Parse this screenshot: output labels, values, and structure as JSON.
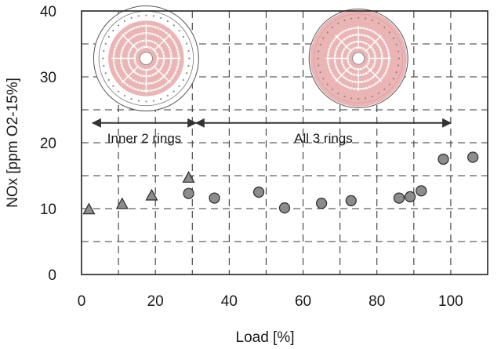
{
  "chart_data": {
    "type": "scatter",
    "xlabel": "Load [%]",
    "ylabel": "NOx [ppm O2-15%]",
    "xlim": [
      0,
      110
    ],
    "ylim": [
      0,
      40
    ],
    "xticks": [
      0,
      20,
      40,
      60,
      80,
      100
    ],
    "yticks": [
      0,
      10,
      20,
      30,
      40
    ],
    "grid": "dashed",
    "series": [
      {
        "marker": "triangle",
        "color": "#8c8c8c",
        "points": [
          {
            "x": 2,
            "y": 9.8
          },
          {
            "x": 11,
            "y": 10.6
          },
          {
            "x": 19,
            "y": 11.9
          },
          {
            "x": 29,
            "y": 14.6
          }
        ]
      },
      {
        "marker": "circle",
        "color": "#8c8c8c",
        "points": [
          {
            "x": 29,
            "y": 12.3
          },
          {
            "x": 36,
            "y": 11.6
          },
          {
            "x": 48,
            "y": 12.5
          },
          {
            "x": 55,
            "y": 10.1
          },
          {
            "x": 65,
            "y": 10.8
          },
          {
            "x": 73,
            "y": 11.2
          },
          {
            "x": 86,
            "y": 11.6
          },
          {
            "x": 89,
            "y": 11.8
          },
          {
            "x": 92,
            "y": 12.7
          },
          {
            "x": 98,
            "y": 17.5
          },
          {
            "x": 106,
            "y": 17.8
          }
        ]
      }
    ],
    "annotations": [
      {
        "label": "Inner 2 rings",
        "x_from": 3,
        "x_to": 31,
        "y": 23
      },
      {
        "label": "All 3 rings",
        "x_from": 31,
        "x_to": 100,
        "y": 23
      }
    ],
    "insets": [
      {
        "name": "inner-2-rings-diagram",
        "shaded_rings": "inner 2",
        "color": "#e8a8a8"
      },
      {
        "name": "all-3-rings-diagram",
        "shaded_rings": "all 3",
        "color": "#e8a8a8"
      }
    ]
  }
}
